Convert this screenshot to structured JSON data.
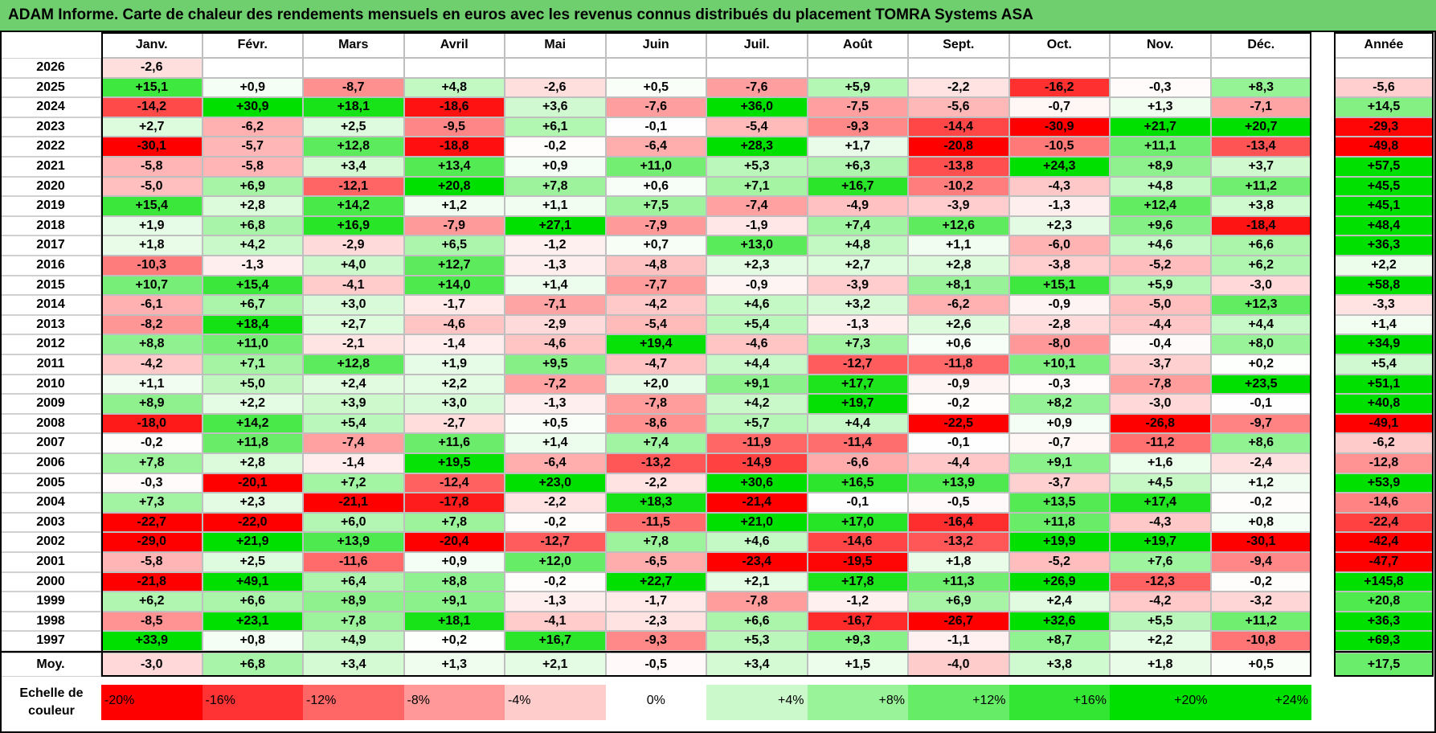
{
  "title": "ADAM Informe. Carte de chaleur des rendements mensuels en euros avec les revenus connus distribués du placement TOMRA Systems ASA",
  "chart_data": {
    "type": "heatmap",
    "title": "ADAM Informe. Carte de chaleur des rendements mensuels en euros avec les revenus connus distribués du placement TOMRA Systems ASA",
    "columns": [
      "Janv.",
      "Févr.",
      "Mars",
      "Avril",
      "Mai",
      "Juin",
      "Juil.",
      "Août",
      "Sept.",
      "Oct.",
      "Nov.",
      "Déc."
    ],
    "annual_header": "Année",
    "rows": [
      {
        "year": "2026",
        "values": [
          "-2,6",
          "",
          "",
          "",
          "",
          "",
          "",
          "",
          "",
          "",
          "",
          ""
        ],
        "annual": ""
      },
      {
        "year": "2025",
        "values": [
          "+15,1",
          "+0,9",
          "-8,7",
          "+4,8",
          "-2,6",
          "+0,5",
          "-7,6",
          "+5,9",
          "-2,2",
          "-16,2",
          "-0,3",
          "+8,3"
        ],
        "annual": "-5,6"
      },
      {
        "year": "2024",
        "values": [
          "-14,2",
          "+30,9",
          "+18,1",
          "-18,6",
          "+3,6",
          "-7,6",
          "+36,0",
          "-7,5",
          "-5,6",
          "-0,7",
          "+1,3",
          "-7,1"
        ],
        "annual": "+14,5"
      },
      {
        "year": "2023",
        "values": [
          "+2,7",
          "-6,2",
          "+2,5",
          "-9,5",
          "+6,1",
          "-0,1",
          "-5,4",
          "-9,3",
          "-14,4",
          "-30,9",
          "+21,7",
          "+20,7"
        ],
        "annual": "-29,3"
      },
      {
        "year": "2022",
        "values": [
          "-30,1",
          "-5,7",
          "+12,8",
          "-18,8",
          "-0,2",
          "-6,4",
          "+28,3",
          "+1,7",
          "-20,8",
          "-10,5",
          "+11,1",
          "-13,4"
        ],
        "annual": "-49,8"
      },
      {
        "year": "2021",
        "values": [
          "-5,8",
          "-5,8",
          "+3,4",
          "+13,4",
          "+0,9",
          "+11,0",
          "+5,3",
          "+6,3",
          "-13,8",
          "+24,3",
          "+8,9",
          "+3,7"
        ],
        "annual": "+57,5"
      },
      {
        "year": "2020",
        "values": [
          "-5,0",
          "+6,9",
          "-12,1",
          "+20,8",
          "+7,8",
          "+0,6",
          "+7,1",
          "+16,7",
          "-10,2",
          "-4,3",
          "+4,8",
          "+11,2"
        ],
        "annual": "+45,5"
      },
      {
        "year": "2019",
        "values": [
          "+15,4",
          "+2,8",
          "+14,2",
          "+1,2",
          "+1,1",
          "+7,5",
          "-7,4",
          "-4,9",
          "-3,9",
          "-1,3",
          "+12,4",
          "+3,8"
        ],
        "annual": "+45,1"
      },
      {
        "year": "2018",
        "values": [
          "+1,9",
          "+6,8",
          "+16,9",
          "-7,9",
          "+27,1",
          "-7,9",
          "-1,9",
          "+7,4",
          "+12,6",
          "+2,3",
          "+9,6",
          "-18,4"
        ],
        "annual": "+48,4"
      },
      {
        "year": "2017",
        "values": [
          "+1,8",
          "+4,2",
          "-2,9",
          "+6,5",
          "-1,2",
          "+0,7",
          "+13,0",
          "+4,8",
          "+1,1",
          "-6,0",
          "+4,6",
          "+6,6"
        ],
        "annual": "+36,3"
      },
      {
        "year": "2016",
        "values": [
          "-10,3",
          "-1,3",
          "+4,0",
          "+12,7",
          "-1,3",
          "-4,8",
          "+2,3",
          "+2,7",
          "+2,8",
          "-3,8",
          "-5,2",
          "+6,2"
        ],
        "annual": "+2,2"
      },
      {
        "year": "2015",
        "values": [
          "+10,7",
          "+15,4",
          "-4,1",
          "+14,0",
          "+1,4",
          "-7,7",
          "-0,9",
          "-3,9",
          "+8,1",
          "+15,1",
          "+5,9",
          "-3,0"
        ],
        "annual": "+58,8"
      },
      {
        "year": "2014",
        "values": [
          "-6,1",
          "+6,7",
          "+3,0",
          "-1,7",
          "-7,1",
          "-4,2",
          "+4,6",
          "+3,2",
          "-6,2",
          "-0,9",
          "-5,0",
          "+12,3"
        ],
        "annual": "-3,3"
      },
      {
        "year": "2013",
        "values": [
          "-8,2",
          "+18,4",
          "+2,7",
          "-4,6",
          "-2,9",
          "-5,4",
          "+5,4",
          "-1,3",
          "+2,6",
          "-2,8",
          "-4,4",
          "+4,4"
        ],
        "annual": "+1,4"
      },
      {
        "year": "2012",
        "values": [
          "+8,8",
          "+11,0",
          "-2,1",
          "-1,4",
          "-4,6",
          "+19,4",
          "-4,6",
          "+7,3",
          "+0,6",
          "-8,0",
          "-0,4",
          "+8,0"
        ],
        "annual": "+34,9"
      },
      {
        "year": "2011",
        "values": [
          "-4,2",
          "+7,1",
          "+12,8",
          "+1,9",
          "+9,5",
          "-4,7",
          "+4,4",
          "-12,7",
          "-11,8",
          "+10,1",
          "-3,7",
          "+0,2"
        ],
        "annual": "+5,4"
      },
      {
        "year": "2010",
        "values": [
          "+1,1",
          "+5,0",
          "+2,4",
          "+2,2",
          "-7,2",
          "+2,0",
          "+9,1",
          "+17,7",
          "-0,9",
          "-0,3",
          "-7,8",
          "+23,5"
        ],
        "annual": "+51,1"
      },
      {
        "year": "2009",
        "values": [
          "+8,9",
          "+2,2",
          "+3,9",
          "+3,0",
          "-1,3",
          "-7,8",
          "+4,2",
          "+19,7",
          "-0,2",
          "+8,2",
          "-3,0",
          "-0,1"
        ],
        "annual": "+40,8"
      },
      {
        "year": "2008",
        "values": [
          "-18,0",
          "+14,2",
          "+5,4",
          "-2,7",
          "+0,5",
          "-8,6",
          "+5,7",
          "+4,4",
          "-22,5",
          "+0,9",
          "-26,8",
          "-9,7"
        ],
        "annual": "-49,1"
      },
      {
        "year": "2007",
        "values": [
          "-0,2",
          "+11,8",
          "-7,4",
          "+11,6",
          "+1,4",
          "+7,4",
          "-11,9",
          "-11,4",
          "-0,1",
          "-0,7",
          "-11,2",
          "+8,6"
        ],
        "annual": "-6,2"
      },
      {
        "year": "2006",
        "values": [
          "+7,8",
          "+2,8",
          "-1,4",
          "+19,5",
          "-6,4",
          "-13,2",
          "-14,9",
          "-6,6",
          "-4,4",
          "+9,1",
          "+1,6",
          "-2,4"
        ],
        "annual": "-12,8"
      },
      {
        "year": "2005",
        "values": [
          "-0,3",
          "-20,1",
          "+7,2",
          "-12,4",
          "+23,0",
          "-2,2",
          "+30,6",
          "+16,5",
          "+13,9",
          "-3,7",
          "+4,5",
          "+1,2"
        ],
        "annual": "+53,9"
      },
      {
        "year": "2004",
        "values": [
          "+7,3",
          "+2,3",
          "-21,1",
          "-17,8",
          "-2,2",
          "+18,3",
          "-21,4",
          "-0,1",
          "-0,5",
          "+13,5",
          "+17,4",
          "-0,2"
        ],
        "annual": "-14,6"
      },
      {
        "year": "2003",
        "values": [
          "-22,7",
          "-22,0",
          "+6,0",
          "+7,8",
          "-0,2",
          "-11,5",
          "+21,0",
          "+17,0",
          "-16,4",
          "+11,8",
          "-4,3",
          "+0,8"
        ],
        "annual": "-22,4"
      },
      {
        "year": "2002",
        "values": [
          "-29,0",
          "+21,9",
          "+13,9",
          "-20,4",
          "-12,7",
          "+7,8",
          "+4,6",
          "-14,6",
          "-13,2",
          "+19,9",
          "+19,7",
          "-30,1"
        ],
        "annual": "-42,4"
      },
      {
        "year": "2001",
        "values": [
          "-5,8",
          "+2,5",
          "-11,6",
          "+0,9",
          "+12,0",
          "-6,5",
          "-23,4",
          "-19,5",
          "+1,8",
          "-5,2",
          "+7,6",
          "-9,4"
        ],
        "annual": "-47,7"
      },
      {
        "year": "2000",
        "values": [
          "-21,8",
          "+49,1",
          "+6,4",
          "+8,8",
          "-0,2",
          "+22,7",
          "+2,1",
          "+17,8",
          "+11,3",
          "+26,9",
          "-12,3",
          "-0,2"
        ],
        "annual": "+145,8"
      },
      {
        "year": "1999",
        "values": [
          "+6,2",
          "+6,6",
          "+8,9",
          "+9,1",
          "-1,3",
          "-1,7",
          "-7,8",
          "-1,2",
          "+6,9",
          "+2,4",
          "-4,2",
          "-3,2"
        ],
        "annual": "+20,8"
      },
      {
        "year": "1998",
        "values": [
          "-8,5",
          "+23,1",
          "+7,8",
          "+18,1",
          "-4,1",
          "-2,3",
          "+6,6",
          "-16,7",
          "-26,7",
          "+32,6",
          "+5,5",
          "+11,2"
        ],
        "annual": "+36,3"
      },
      {
        "year": "1997",
        "values": [
          "+33,9",
          "+0,8",
          "+4,9",
          "+0,2",
          "+16,7",
          "-9,3",
          "+5,3",
          "+9,3",
          "-1,1",
          "+8,7",
          "+2,2",
          "-10,8"
        ],
        "annual": "+69,3"
      }
    ],
    "average": {
      "label": "Moy.",
      "values": [
        "-3,0",
        "+6,8",
        "+3,4",
        "+1,3",
        "+2,1",
        "-0,5",
        "+3,4",
        "+1,5",
        "-4,0",
        "+3,8",
        "+1,8",
        "+0,5"
      ],
      "annual": "+17,5"
    },
    "legend": {
      "label_line1": "Echelle de",
      "label_line2": "couleur",
      "steps": [
        "-20%",
        "-16%",
        "-12%",
        "-8%",
        "-4%",
        "0%",
        "+4%",
        "+8%",
        "+12%",
        "+16%",
        "+20%",
        "+24%"
      ],
      "step_values": [
        -20,
        -16,
        -12,
        -8,
        -4,
        0,
        4,
        8,
        12,
        16,
        20,
        24
      ]
    },
    "colors": {
      "strong_negative": "#ff0000",
      "neutral": "#ffffff",
      "strong_positive": "#00e000",
      "title_bar": "#6fcf6f"
    }
  }
}
